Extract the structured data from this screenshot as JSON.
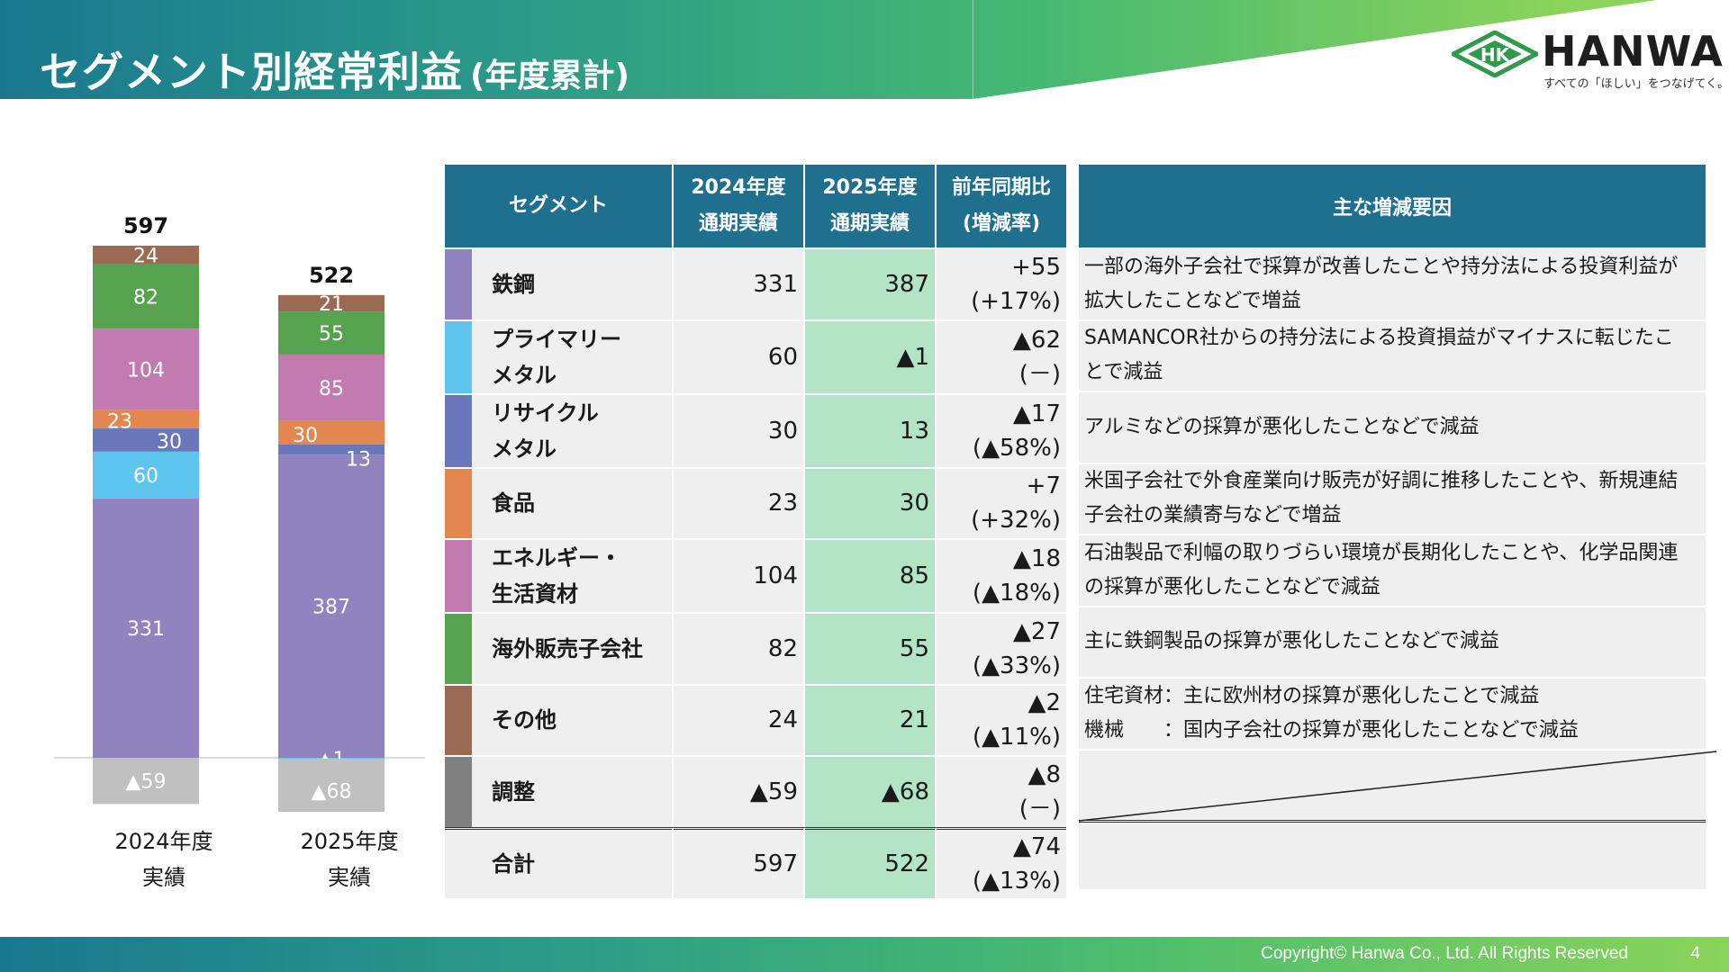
{
  "header": {
    "title": "セグメント別経常利益",
    "subtitle": "(年度累計)"
  },
  "logo": {
    "mark": "HK",
    "name": "HANWA",
    "tagline": "すべての「ほしい」をつなげてく。"
  },
  "chart_data": {
    "type": "bar",
    "stacked": true,
    "categories": [
      "2024年度\n実績",
      "2025年度\n実績"
    ],
    "category_lines": [
      [
        "2024年度",
        "実績"
      ],
      [
        "2025年度",
        "実績"
      ]
    ],
    "totals": [
      597,
      522
    ],
    "series": [
      {
        "name": "鉄鋼",
        "values": [
          331,
          387
        ],
        "color": "#9183c0"
      },
      {
        "name": "プライマリーメタル",
        "values": [
          60,
          -1
        ],
        "color": "#5ec5ee"
      },
      {
        "name": "リサイクルメタル",
        "values": [
          30,
          13
        ],
        "color": "#6a78bb"
      },
      {
        "name": "食品",
        "values": [
          23,
          30
        ],
        "color": "#e4864f"
      },
      {
        "name": "エネルギー・生活資材",
        "values": [
          104,
          85
        ],
        "color": "#c27bb1"
      },
      {
        "name": "海外販売子会社",
        "values": [
          82,
          55
        ],
        "color": "#56a24f"
      },
      {
        "name": "その他",
        "values": [
          24,
          21
        ],
        "color": "#9b6a52"
      },
      {
        "name": "調整",
        "values": [
          -59,
          -68
        ],
        "color": "#c0c0c0"
      }
    ],
    "value_labels": [
      [
        "331",
        "60",
        "30",
        "23",
        "104",
        "82",
        "24",
        "▲59"
      ],
      [
        "387",
        "▲1",
        "13",
        "30",
        "85",
        "55",
        "21",
        "▲68"
      ]
    ],
    "total_labels": [
      "597",
      "522"
    ],
    "legend": "none",
    "grid": false
  },
  "table": {
    "headers": {
      "segment": "セグメント",
      "fy2024_line1": "2024年度",
      "fy2024_line2": "通期実績",
      "fy2025_line1": "2025年度",
      "fy2025_line2": "通期実績",
      "yoy_line1": "前年同期比",
      "yoy_line2": "(増減率)"
    },
    "rows": [
      {
        "name1": "鉄鋼",
        "name2": "",
        "color": "#9183c0",
        "v2024": "331",
        "v2025": "387",
        "diff": "+55",
        "rate": "(+17%)"
      },
      {
        "name1": "プライマリー",
        "name2": "メタル",
        "color": "#5ec5ee",
        "v2024": "60",
        "v2025": "▲1",
        "diff": "▲62",
        "rate": "(－)"
      },
      {
        "name1": "リサイクル",
        "name2": "メタル",
        "color": "#6a78bb",
        "v2024": "30",
        "v2025": "13",
        "diff": "▲17",
        "rate": "(▲58%)"
      },
      {
        "name1": "食品",
        "name2": "",
        "color": "#e4864f",
        "v2024": "23",
        "v2025": "30",
        "diff": "+7",
        "rate": "(+32%)"
      },
      {
        "name1": "エネルギー・",
        "name2": "生活資材",
        "color": "#c27bb1",
        "v2024": "104",
        "v2025": "85",
        "diff": "▲18",
        "rate": "(▲18%)"
      },
      {
        "name1": "海外販売子会社",
        "name2": "",
        "color": "#56a24f",
        "v2024": "82",
        "v2025": "55",
        "diff": "▲27",
        "rate": "(▲33%)"
      },
      {
        "name1": "その他",
        "name2": "",
        "color": "#9b6a52",
        "v2024": "24",
        "v2025": "21",
        "diff": "▲2",
        "rate": "(▲11%)"
      },
      {
        "name1": "調整",
        "name2": "",
        "color": "#808080",
        "v2024": "▲59",
        "v2025": "▲68",
        "diff": "▲8",
        "rate": "(－)"
      }
    ],
    "total": {
      "name": "合計",
      "v2024": "597",
      "v2025": "522",
      "diff": "▲74",
      "rate": "(▲13%)"
    }
  },
  "reasons": {
    "header": "主な増減要因",
    "rows": [
      {
        "line1": "一部の海外子会社で採算が改善したことや持分法による投資利益が",
        "line2": "拡大したことなどで増益"
      },
      {
        "line1": "SAMANCOR社からの持分法による投資損益がマイナスに転じたこ",
        "line2": "とで減益"
      },
      {
        "line1": "アルミなどの採算が悪化したことなどで減益",
        "line2": ""
      },
      {
        "line1": "米国子会社で外食産業向け販売が好調に推移したことや、新規連結",
        "line2": "子会社の業績寄与などで増益"
      },
      {
        "line1": "石油製品で利幅の取りづらい環境が長期化したことや、化学品関連",
        "line2": "の採算が悪化したことなどで減益"
      },
      {
        "line1": "主に鉄鋼製品の採算が悪化したことなどで減益",
        "line2": ""
      },
      {
        "line1": "住宅資材：主に欧州材の採算が悪化したことで減益",
        "line2": "機械　　：国内子会社の採算が悪化したことなどで減益"
      }
    ]
  },
  "footer": {
    "copyright": "Copyright© Hanwa Co., Ltd. All Rights Reserved",
    "page": "4"
  }
}
